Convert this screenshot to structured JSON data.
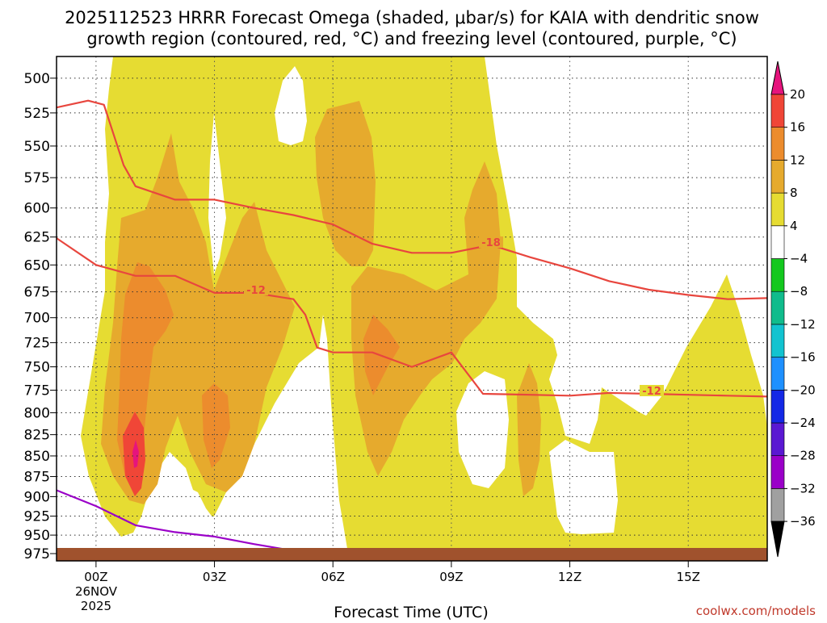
{
  "title": {
    "line1": "2025112523 HRRR Forecast Omega (shaded, μbar/s) for KAIA with dendritic snow",
    "line2": "growth region (contoured, red, °C) and freezing level (contoured, purple, °C)"
  },
  "credit": "coolwx.com/models",
  "chart_data": {
    "type": "area",
    "title": "2025112523 HRRR Forecast Omega (shaded, μbar/s) for KAIA with dendritic snow growth region (contoured, red, °C) and freezing level (contoured, purple, °C)",
    "xlabel": "Forecast Time (UTC)",
    "ylabel": "",
    "x_ticks": [
      "00Z",
      "03Z",
      "06Z",
      "09Z",
      "12Z",
      "15Z"
    ],
    "x_date_line1": "26NOV",
    "x_date_line2": "2025",
    "y_ticks": [
      500,
      525,
      550,
      575,
      600,
      625,
      650,
      675,
      700,
      725,
      750,
      775,
      800,
      825,
      850,
      875,
      900,
      925,
      950,
      975
    ],
    "xlim_hours": [
      -1,
      17
    ],
    "ylim_hpa": [
      485,
      985
    ],
    "y_axis": "pressure-log-inverted",
    "grid": true,
    "colorbar": {
      "unit": "μbar/s",
      "levels": [
        -36,
        -32,
        -28,
        -24,
        -20,
        -16,
        -12,
        -8,
        -4,
        4,
        8,
        12,
        16,
        20
      ],
      "colors": [
        "#000000",
        "#a0a0a0",
        "#9a00c8",
        "#5a18d2",
        "#1428e6",
        "#1e90ff",
        "#12c3d0",
        "#10bc8c",
        "#14c81e",
        "#ffffff",
        "#e6dc32",
        "#e6aa2d",
        "#ec8c2d",
        "#f04637",
        "#e6147d"
      ]
    },
    "contour_labels": [
      "-18",
      "-12",
      "-12"
    ],
    "series": [
      {
        "name": "dendritic growth region upper boundary",
        "color": "#e8463e",
        "points": [
          [
            -1,
            521
          ],
          [
            -0.2,
            516
          ],
          [
            0.2,
            519
          ],
          [
            0.7,
            565
          ],
          [
            1.0,
            582
          ],
          [
            2.0,
            593
          ],
          [
            3.0,
            593
          ],
          [
            4.0,
            600
          ],
          [
            5.0,
            606
          ],
          [
            6.0,
            614
          ],
          [
            7.0,
            631
          ],
          [
            8.0,
            639
          ],
          [
            9.0,
            639
          ],
          [
            10.0,
            632
          ],
          [
            11.0,
            643
          ],
          [
            12.0,
            653
          ],
          [
            13.0,
            665
          ],
          [
            14.0,
            673
          ],
          [
            15.0,
            678
          ],
          [
            16.0,
            682
          ],
          [
            17.0,
            681
          ]
        ]
      },
      {
        "name": "dendritic growth region lower boundary",
        "color": "#e8463e",
        "points": [
          [
            -1,
            626
          ],
          [
            0,
            650
          ],
          [
            1.0,
            660
          ],
          [
            2.0,
            660
          ],
          [
            3.0,
            676
          ],
          [
            4.0,
            676
          ],
          [
            5.0,
            682
          ],
          [
            5.3,
            697
          ],
          [
            5.6,
            730
          ],
          [
            6.0,
            735
          ],
          [
            7.0,
            735
          ],
          [
            8.0,
            750
          ],
          [
            9.0,
            735
          ],
          [
            9.8,
            779
          ],
          [
            11.0,
            780
          ],
          [
            12.0,
            781
          ],
          [
            13.0,
            778
          ],
          [
            14.0,
            779
          ],
          [
            15.0,
            780
          ],
          [
            16.0,
            781
          ],
          [
            17.0,
            782
          ]
        ]
      },
      {
        "name": "freezing level",
        "color": "#9a00c8",
        "points": [
          [
            -1,
            892
          ],
          [
            0,
            912
          ],
          [
            1.0,
            937
          ],
          [
            2.0,
            946
          ],
          [
            3.0,
            952
          ],
          [
            4.0,
            962
          ],
          [
            5.0,
            971
          ],
          [
            6.0,
            976
          ]
        ]
      }
    ]
  }
}
